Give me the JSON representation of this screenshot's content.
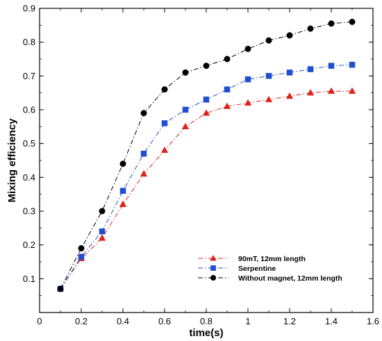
{
  "chart_data": {
    "type": "line",
    "xlabel": "time(s)",
    "ylabel": "Mixing efficiency",
    "xlim": [
      0,
      1.6
    ],
    "ylim": [
      0,
      0.9
    ],
    "xticks": [
      "0",
      "0.2",
      "0.4",
      "0.6",
      "0.8",
      "1",
      "1.2",
      "1.4",
      "1.6"
    ],
    "yticks": [
      "0.1",
      "0.2",
      "0.3",
      "0.4",
      "0.5",
      "0.6",
      "0.7",
      "0.8",
      "0.9"
    ],
    "grid": false,
    "legend_position": "lower-right",
    "series": [
      {
        "name": "90mT, 12mm length",
        "color": "#e0211b",
        "marker": "triangle",
        "dash": "dash-dot",
        "x": [
          0.1,
          0.2,
          0.3,
          0.4,
          0.5,
          0.6,
          0.7,
          0.8,
          0.9,
          1.0,
          1.1,
          1.2,
          1.3,
          1.4,
          1.5
        ],
        "y": [
          0.07,
          0.16,
          0.22,
          0.32,
          0.41,
          0.48,
          0.55,
          0.59,
          0.61,
          0.62,
          0.63,
          0.64,
          0.65,
          0.655,
          0.655
        ]
      },
      {
        "name": "Serpentine",
        "color": "#1f4fd0",
        "marker": "square",
        "dash": "dash-dot",
        "x": [
          0.1,
          0.2,
          0.3,
          0.4,
          0.5,
          0.6,
          0.7,
          0.8,
          0.9,
          1.0,
          1.1,
          1.2,
          1.3,
          1.4,
          1.5
        ],
        "y": [
          0.07,
          0.165,
          0.24,
          0.36,
          0.47,
          0.56,
          0.6,
          0.63,
          0.66,
          0.69,
          0.7,
          0.71,
          0.72,
          0.73,
          0.733
        ]
      },
      {
        "name": "Without magnet, 12mm length",
        "color": "#000000",
        "marker": "circle",
        "dash": "dash-dot",
        "x": [
          0.1,
          0.2,
          0.3,
          0.4,
          0.5,
          0.6,
          0.7,
          0.8,
          0.9,
          1.0,
          1.1,
          1.2,
          1.3,
          1.4,
          1.5
        ],
        "y": [
          0.07,
          0.19,
          0.3,
          0.44,
          0.59,
          0.66,
          0.71,
          0.73,
          0.75,
          0.78,
          0.805,
          0.82,
          0.84,
          0.855,
          0.86
        ]
      }
    ]
  }
}
